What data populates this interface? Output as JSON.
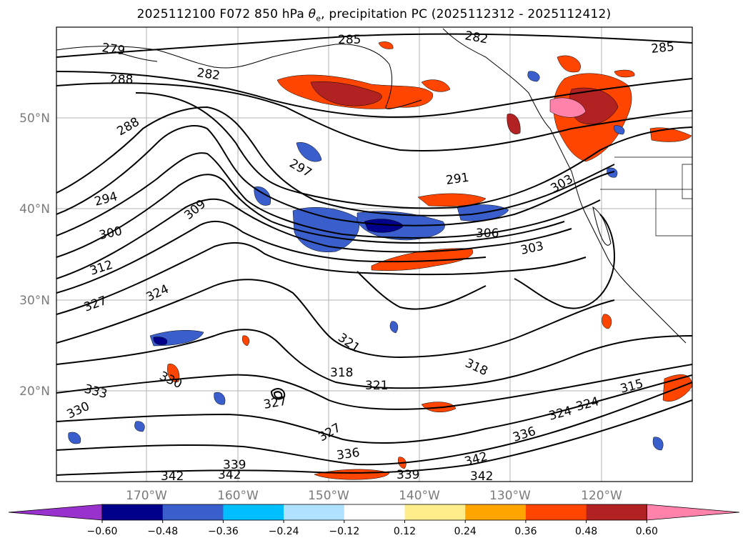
{
  "title_prefix": "2025112100 F072 850 hPa ",
  "title_var": "θ",
  "title_sub": "e",
  "title_suffix": ", precipitation PC (2025112312 - 2025112412)",
  "lat_labels": [
    "50°N",
    "40°N",
    "30°N",
    "20°N"
  ],
  "lon_labels": [
    "170°W",
    "160°W",
    "150°W",
    "140°W",
    "130°W",
    "120°W"
  ],
  "contour_labels": [
    "279",
    "285",
    "282",
    "285",
    "288",
    "282",
    "288",
    "297",
    "291",
    "294",
    "309",
    "303",
    "300",
    "306",
    "303",
    "312",
    "324",
    "327",
    "321",
    "318",
    "318",
    "321",
    "330",
    "333",
    "330",
    "327",
    "315",
    "327",
    "324",
    "336",
    "336",
    "339",
    "339",
    "342",
    "342",
    "342",
    "324"
  ],
  "colorbar": {
    "ticks": [
      "−0.60",
      "−0.48",
      "−0.36",
      "−0.24",
      "−0.12",
      "0.12",
      "0.24",
      "0.36",
      "0.48",
      "0.60"
    ],
    "colors": [
      "#9932cc",
      "#00008b",
      "#3a5fcd",
      "#00bfff",
      "#b0e2ff",
      "#ffffff",
      "#ffec8b",
      "#ffa500",
      "#ff4500",
      "#b22222",
      "#ff82ab"
    ]
  }
}
